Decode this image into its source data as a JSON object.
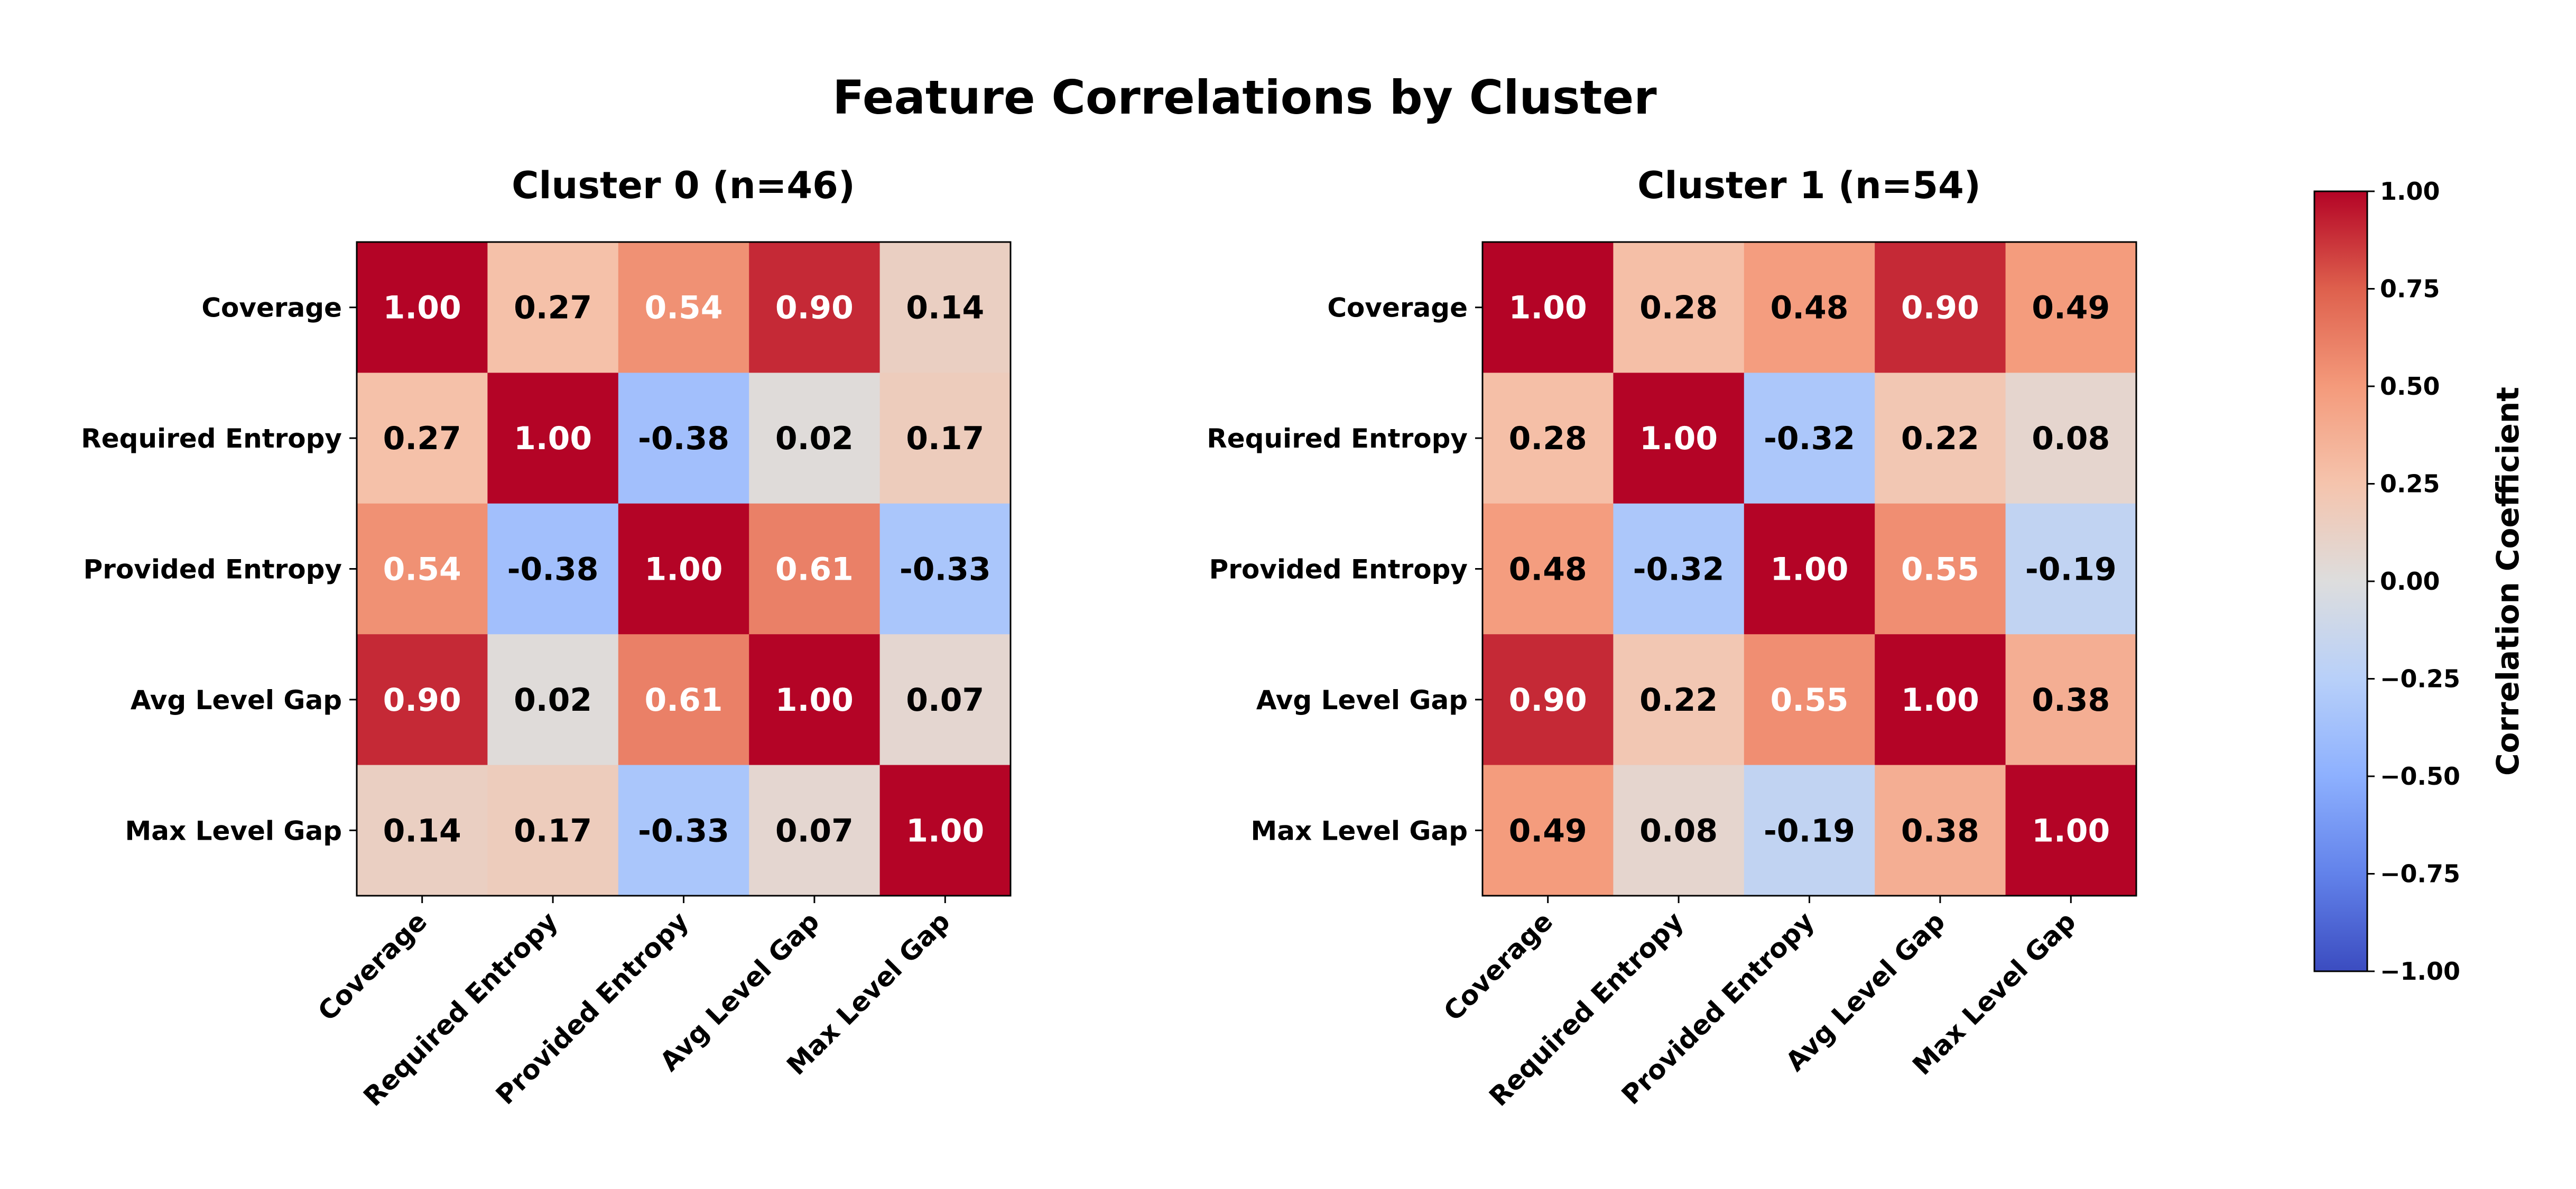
{
  "figure_title": "Feature Correlations by Cluster",
  "chart_data": [
    {
      "type": "heatmap",
      "title": "Cluster 0 (n=46)",
      "x_categories": [
        "Coverage",
        "Required Entropy",
        "Provided Entropy",
        "Avg Level Gap",
        "Max Level Gap"
      ],
      "y_categories": [
        "Coverage",
        "Required Entropy",
        "Provided Entropy",
        "Avg Level Gap",
        "Max Level Gap"
      ],
      "matrix": [
        [
          1.0,
          0.27,
          0.54,
          0.9,
          0.14
        ],
        [
          0.27,
          1.0,
          -0.38,
          0.02,
          0.17
        ],
        [
          0.54,
          -0.38,
          1.0,
          0.61,
          -0.33
        ],
        [
          0.9,
          0.02,
          0.61,
          1.0,
          0.07
        ],
        [
          0.14,
          0.17,
          -0.33,
          0.07,
          1.0
        ]
      ],
      "value_format": "0.00"
    },
    {
      "type": "heatmap",
      "title": "Cluster 1 (n=54)",
      "x_categories": [
        "Coverage",
        "Required Entropy",
        "Provided Entropy",
        "Avg Level Gap",
        "Max Level Gap"
      ],
      "y_categories": [
        "Coverage",
        "Required Entropy",
        "Provided Entropy",
        "Avg Level Gap",
        "Max Level Gap"
      ],
      "matrix": [
        [
          1.0,
          0.28,
          0.48,
          0.9,
          0.49
        ],
        [
          0.28,
          1.0,
          -0.32,
          0.22,
          0.08
        ],
        [
          0.48,
          -0.32,
          1.0,
          0.55,
          -0.19
        ],
        [
          0.9,
          0.22,
          0.55,
          1.0,
          0.38
        ],
        [
          0.49,
          0.08,
          -0.19,
          0.38,
          1.0
        ]
      ],
      "value_format": "0.00"
    }
  ],
  "colorbar": {
    "label": "Correlation Coefficient",
    "colormap": "coolwarm",
    "range": [
      -1.0,
      1.0
    ],
    "ticks": [
      "1.00",
      "0.75",
      "0.50",
      "0.25",
      "0.00",
      "−0.25",
      "−0.50",
      "−0.75",
      "−1.00"
    ],
    "tick_values": [
      1.0,
      0.75,
      0.5,
      0.25,
      0.0,
      -0.25,
      -0.5,
      -0.75,
      -1.0
    ]
  },
  "colors": {
    "low": "#3b4cc0",
    "mid": "#dddddd",
    "high": "#b40426",
    "text_dark": "#000000",
    "text_light": "#ffffff"
  }
}
